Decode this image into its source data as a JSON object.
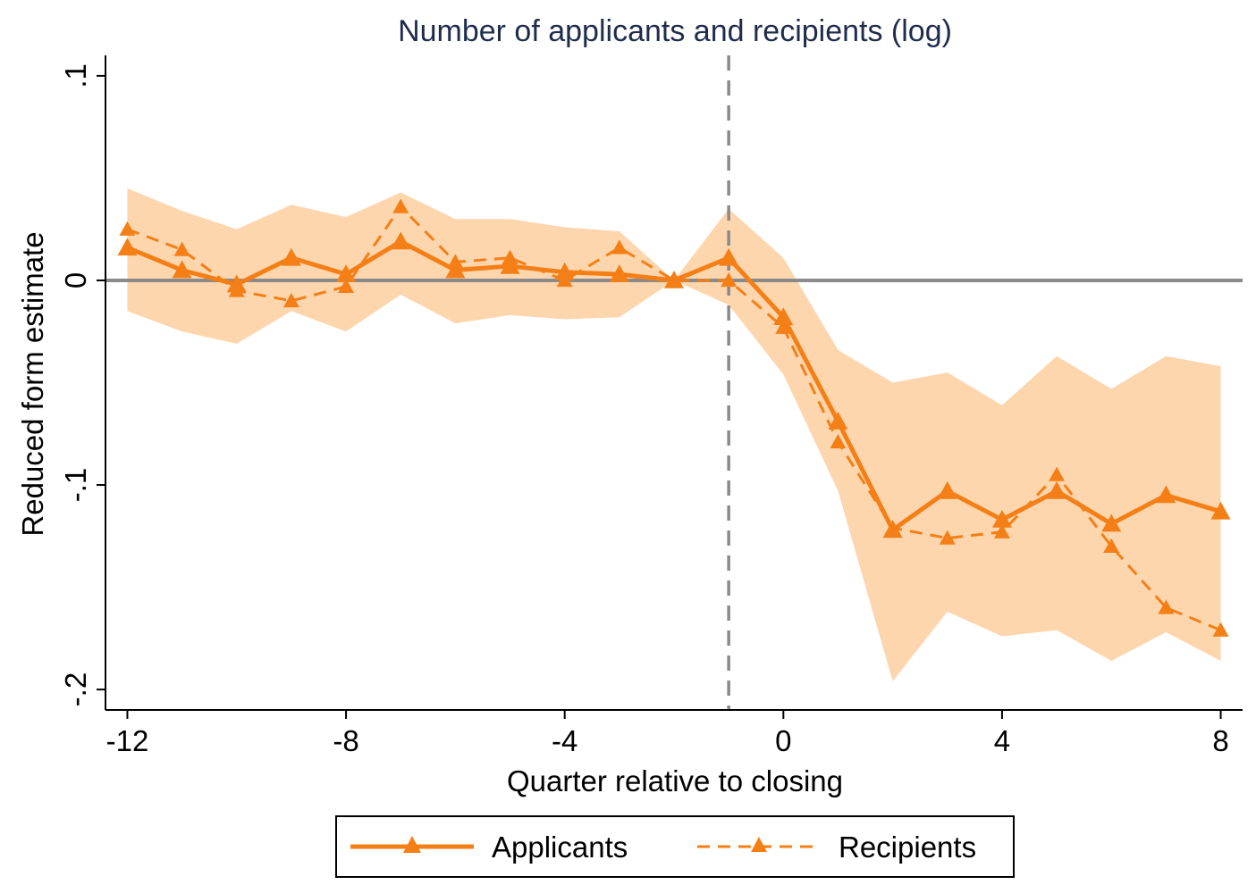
{
  "chart_data": {
    "type": "line",
    "title": "Number of applicants and recipients (log)",
    "xlabel": "Quarter relative to closing",
    "ylabel": "Reduced form estimate",
    "xlim": [
      -12.4,
      8.4
    ],
    "ylim": [
      -0.21,
      0.11
    ],
    "x_ticks": [
      -12,
      -8,
      -4,
      0,
      4,
      8
    ],
    "x_tick_labels": [
      "-12",
      "-8",
      "-4",
      "0",
      "4",
      "8"
    ],
    "y_ticks": [
      -0.2,
      -0.1,
      0,
      0.1
    ],
    "y_tick_labels": [
      "-.2",
      "-.1",
      "0",
      ".1"
    ],
    "reference_lines": {
      "horizontal_y": 0,
      "vertical_x": -1
    },
    "colors": {
      "series": "#f57f17",
      "ci_band": "#fdd6ae",
      "reference": "#8a8a8a"
    },
    "legend_position": "bottom",
    "x": [
      -12,
      -11,
      -10,
      -9,
      -8,
      -7,
      -6,
      -5,
      -4,
      -3,
      -2,
      -1,
      0,
      1,
      2,
      3,
      4,
      5,
      6,
      7,
      8
    ],
    "series": [
      {
        "name": "Applicants",
        "style": "solid",
        "marker": "triangle",
        "values": [
          0.016,
          0.005,
          -0.002,
          0.011,
          0.003,
          0.019,
          0.005,
          0.007,
          0.004,
          0.003,
          0.0,
          0.011,
          -0.018,
          -0.069,
          -0.122,
          -0.103,
          -0.117,
          -0.103,
          -0.119,
          -0.105,
          -0.113
        ]
      },
      {
        "name": "Recipients",
        "style": "dashed",
        "marker": "triangle",
        "values": [
          0.025,
          0.015,
          -0.005,
          -0.01,
          -0.003,
          0.036,
          0.009,
          0.011,
          0.0,
          0.016,
          0.0,
          0.0,
          -0.023,
          -0.079,
          -0.121,
          -0.126,
          -0.123,
          -0.095,
          -0.13,
          -0.16,
          -0.171
        ]
      }
    ],
    "ci_band": {
      "upper": [
        0.045,
        0.034,
        0.025,
        0.037,
        0.031,
        0.043,
        0.03,
        0.03,
        0.026,
        0.024,
        0.0,
        0.035,
        0.011,
        -0.034,
        -0.05,
        -0.045,
        -0.061,
        -0.037,
        -0.053,
        -0.037,
        -0.042
      ],
      "lower": [
        -0.015,
        -0.025,
        -0.031,
        -0.015,
        -0.025,
        -0.007,
        -0.021,
        -0.017,
        -0.019,
        -0.018,
        0.0,
        -0.012,
        -0.046,
        -0.103,
        -0.196,
        -0.162,
        -0.174,
        -0.171,
        -0.186,
        -0.172,
        -0.186
      ]
    }
  }
}
